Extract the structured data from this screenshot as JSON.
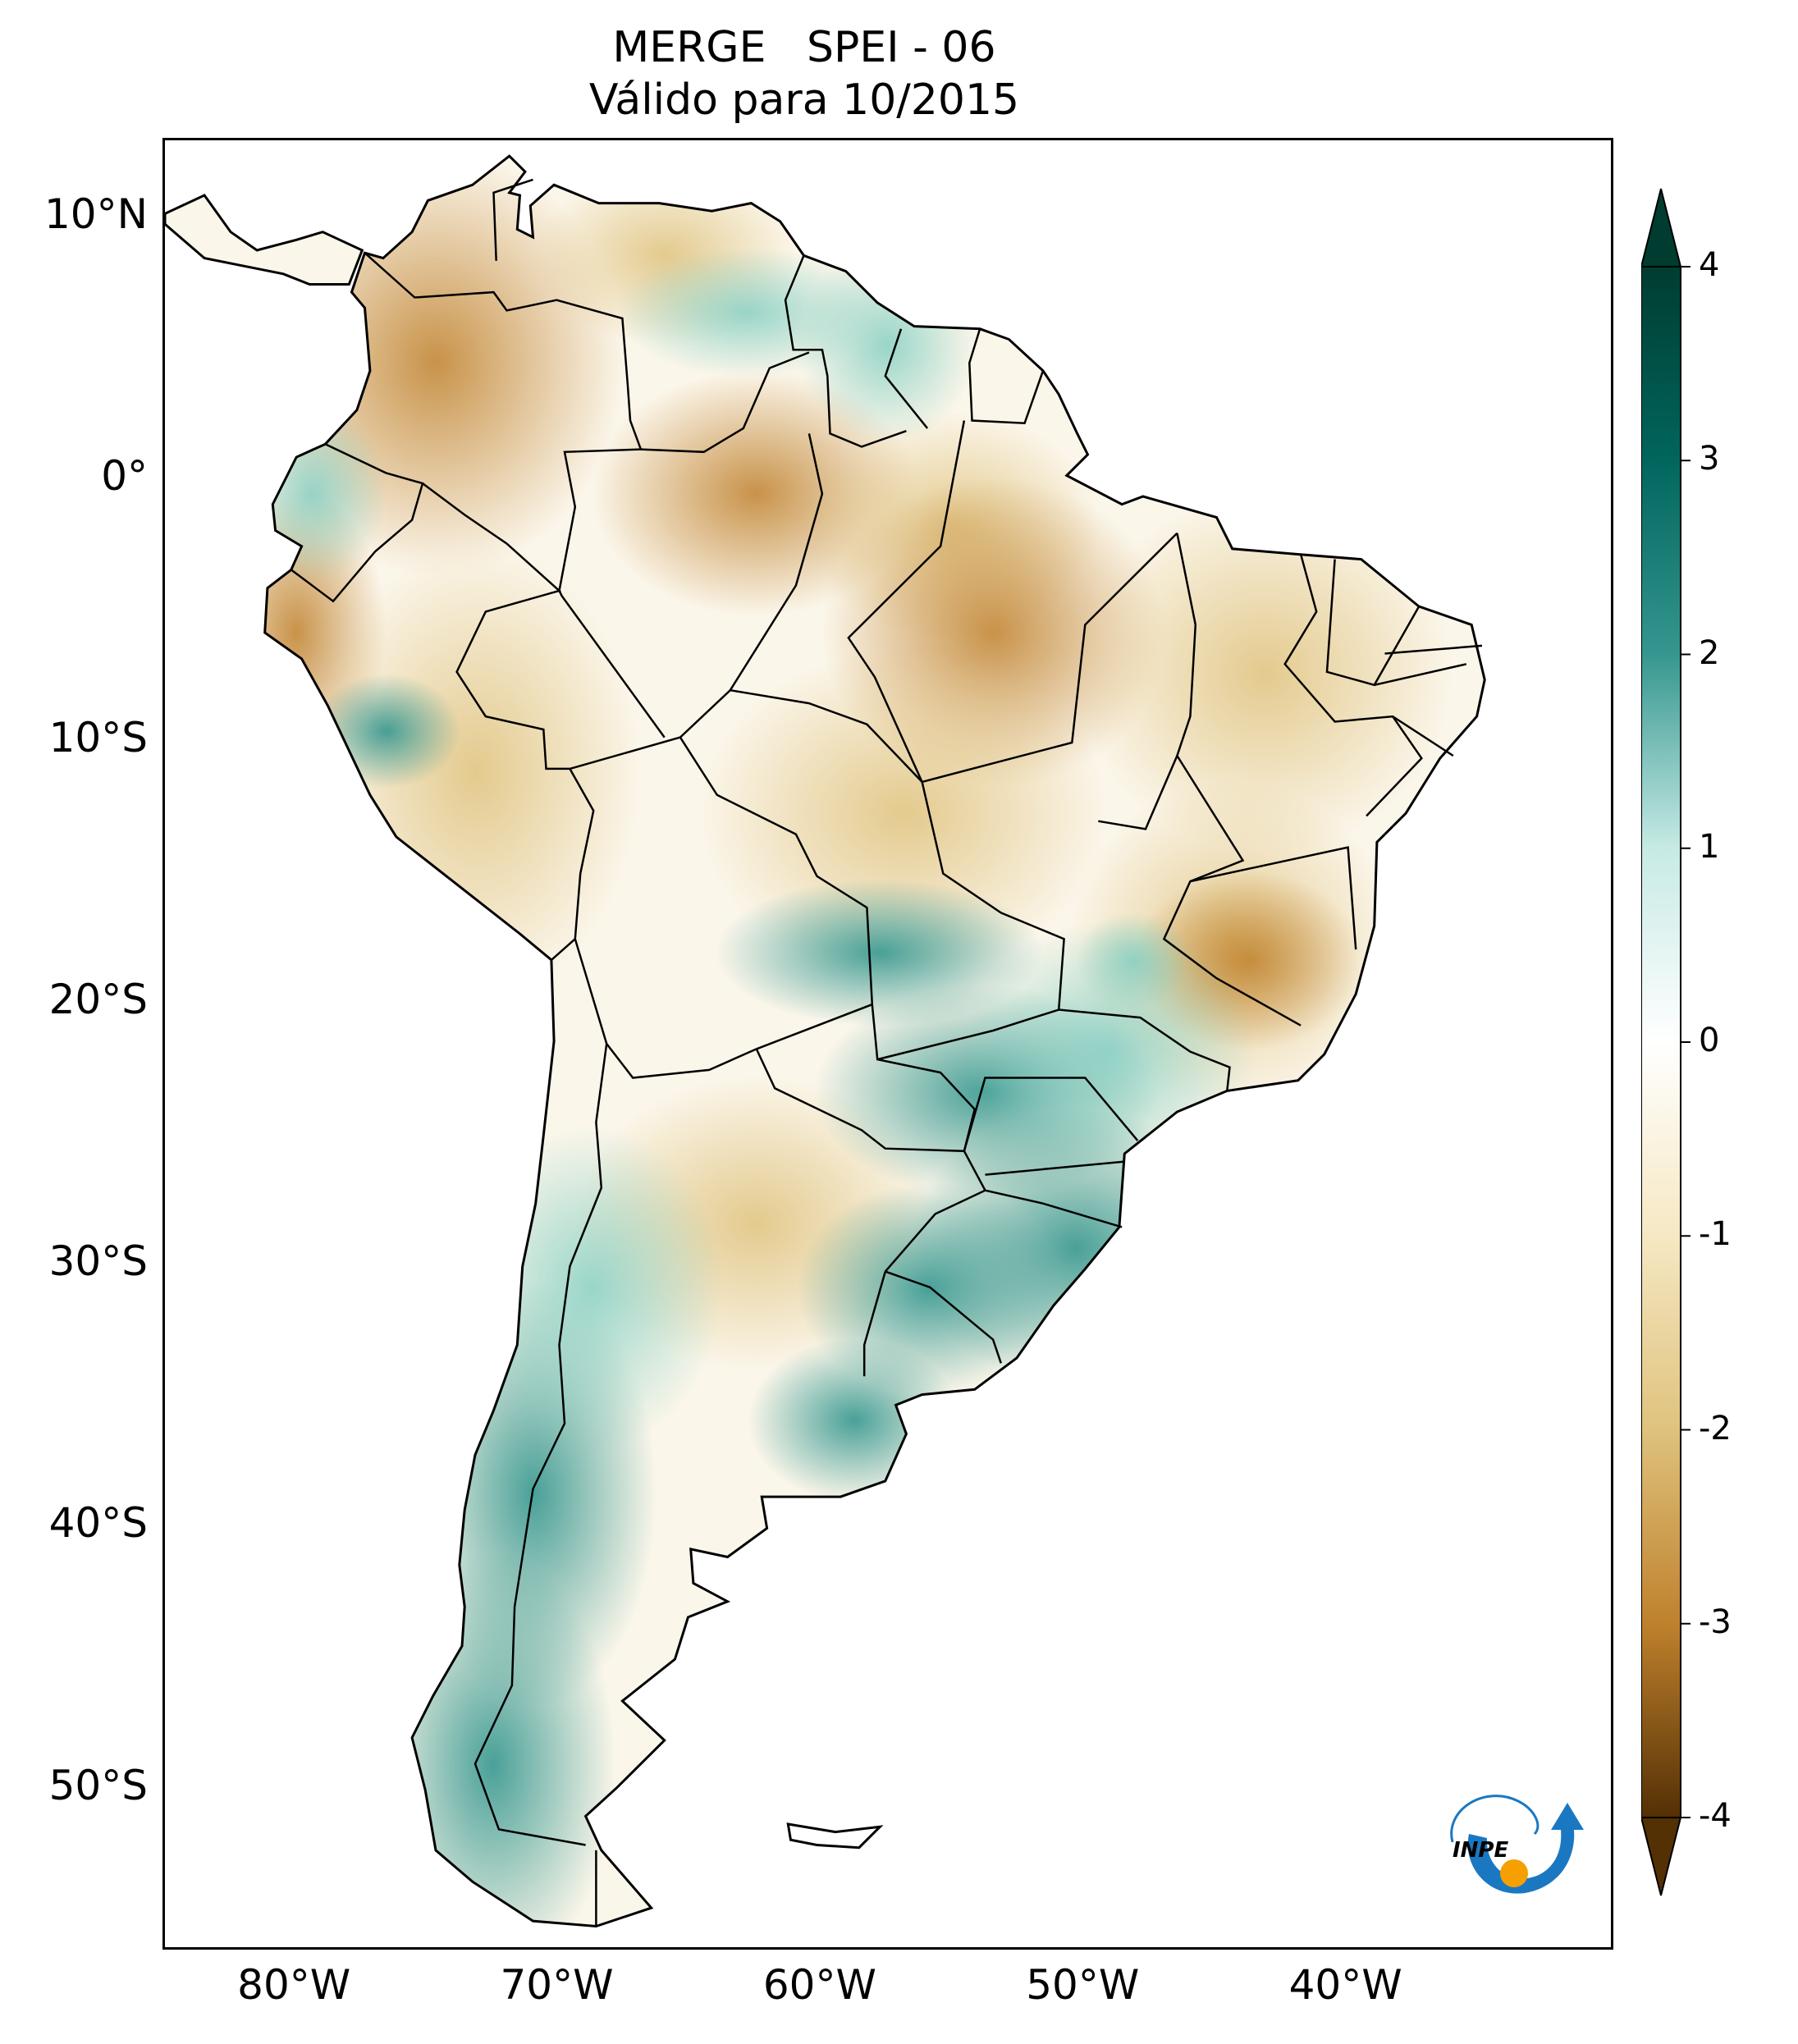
{
  "title": {
    "line1": "MERGE   SPEI - 06",
    "line2": "Válido para 10/2015"
  },
  "map": {
    "extent": {
      "lon_min": -85,
      "lon_max": -30,
      "lat_min": -56,
      "lat_max": 13
    },
    "lat_labels": [
      {
        "lat": 10,
        "label": "10°N"
      },
      {
        "lat": 0,
        "label": "0°"
      },
      {
        "lat": -10,
        "label": "10°S"
      },
      {
        "lat": -20,
        "label": "20°S"
      },
      {
        "lat": -30,
        "label": "30°S"
      },
      {
        "lat": -40,
        "label": "40°S"
      },
      {
        "lat": -50,
        "label": "50°S"
      }
    ],
    "lon_labels": [
      {
        "lon": -80,
        "label": "80°W"
      },
      {
        "lon": -70,
        "label": "70°W"
      },
      {
        "lon": -60,
        "label": "60°W"
      },
      {
        "lon": -50,
        "label": "50°W"
      },
      {
        "lon": -40,
        "label": "40°W"
      }
    ]
  },
  "colorbar": {
    "min": -4,
    "max": 4,
    "extend": "both",
    "ticks": [
      {
        "value": 4,
        "label": "4"
      },
      {
        "value": 3,
        "label": "3"
      },
      {
        "value": 2,
        "label": "2"
      },
      {
        "value": 1,
        "label": "1"
      },
      {
        "value": 0,
        "label": "0"
      },
      {
        "value": -1,
        "label": "-1"
      },
      {
        "value": -2,
        "label": "-2"
      },
      {
        "value": -3,
        "label": "-3"
      },
      {
        "value": -4,
        "label": "-4"
      }
    ],
    "colors": {
      "v4": "#003c30",
      "v3": "#01665e",
      "v2": "#35978f",
      "v1": "#c7eae5",
      "v0": "#ffffff",
      "vm1": "#f6e8c3",
      "vm2": "#dfc27d",
      "vm3": "#bf812d",
      "vm4": "#543005"
    }
  },
  "logo": {
    "text": "INPE",
    "colors": {
      "arrow": "#1a78c2",
      "dot": "#f5a000"
    }
  }
}
